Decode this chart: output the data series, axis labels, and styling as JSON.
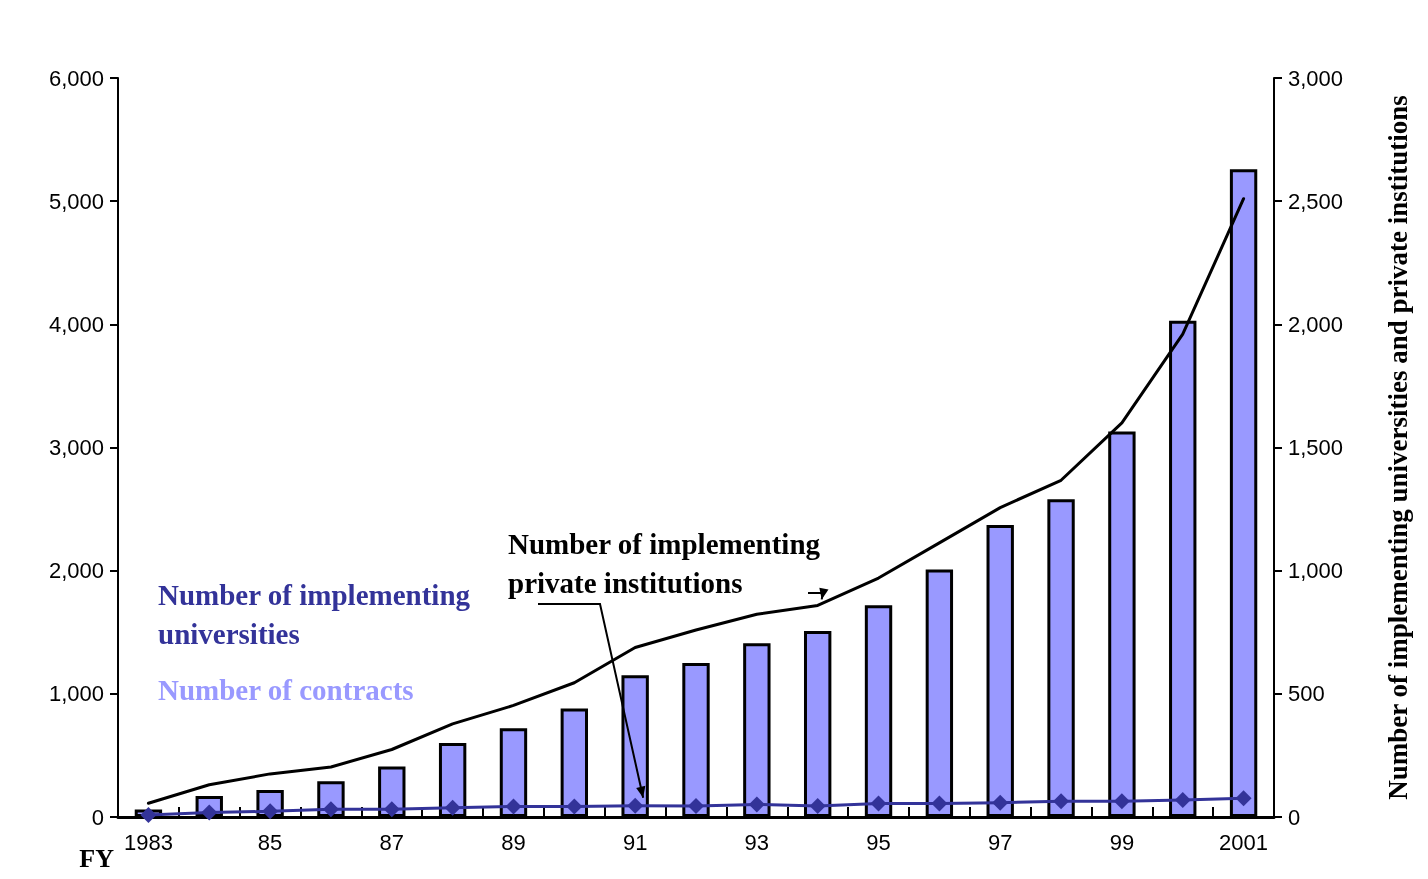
{
  "chart_data": {
    "type": "bar",
    "xlabel": "FY",
    "y2label": "Number of implementing universities and private institutions",
    "categories": [
      "1983",
      null,
      "85",
      null,
      "87",
      null,
      "89",
      null,
      "91",
      null,
      "93",
      null,
      "95",
      null,
      "97",
      null,
      "99",
      null,
      "2001"
    ],
    "series": [
      {
        "name": "Number of contracts",
        "color": "#9999ff",
        "values": [
          60,
          170,
          220,
          290,
          410,
          600,
          720,
          880,
          1150,
          1250,
          1410,
          1510,
          1720,
          2010,
          2370,
          2580,
          3130,
          4030,
          5260
        ]
      },
      {
        "name": "Number of implementing private institutions",
        "type": "line",
        "axis": "y2",
        "color": "#000000",
        "marker": "none",
        "values": [
          56,
          131,
          175,
          203,
          274,
          378,
          453,
          545,
          688,
          759,
          823,
          859,
          970,
          1113,
          1256,
          1367,
          1600,
          1960,
          2510
        ]
      },
      {
        "name": "Number of implementing universities",
        "type": "line",
        "axis": "y2",
        "color": "#333399",
        "marker": "diamond",
        "values": [
          8,
          18,
          23,
          31,
          31,
          38,
          43,
          43,
          46,
          45,
          51,
          45,
          55,
          55,
          58,
          64,
          64,
          69,
          76
        ]
      }
    ],
    "ylim": [
      0,
      6000
    ],
    "yticks": [
      0,
      {
        "value": 1000,
        "label": "1,000"
      },
      {
        "value": 2000,
        "label": "2,000"
      },
      {
        "value": 3000,
        "label": "3,000"
      },
      {
        "value": 4000,
        "label": "4,000"
      },
      {
        "value": 5000,
        "label": "5,000"
      },
      {
        "value": 6000,
        "label": "6,000"
      }
    ],
    "y2lim": [
      0,
      3000
    ],
    "y2ticks": [
      0,
      500,
      {
        "value": 1000,
        "label": "1,000"
      },
      {
        "value": 1500,
        "label": "1,500"
      },
      {
        "value": 2000,
        "label": "2,000"
      },
      {
        "value": 2500,
        "label": "2,500"
      },
      {
        "value": 3000,
        "label": "3,000"
      }
    ],
    "grid": false,
    "legend": false
  }
}
